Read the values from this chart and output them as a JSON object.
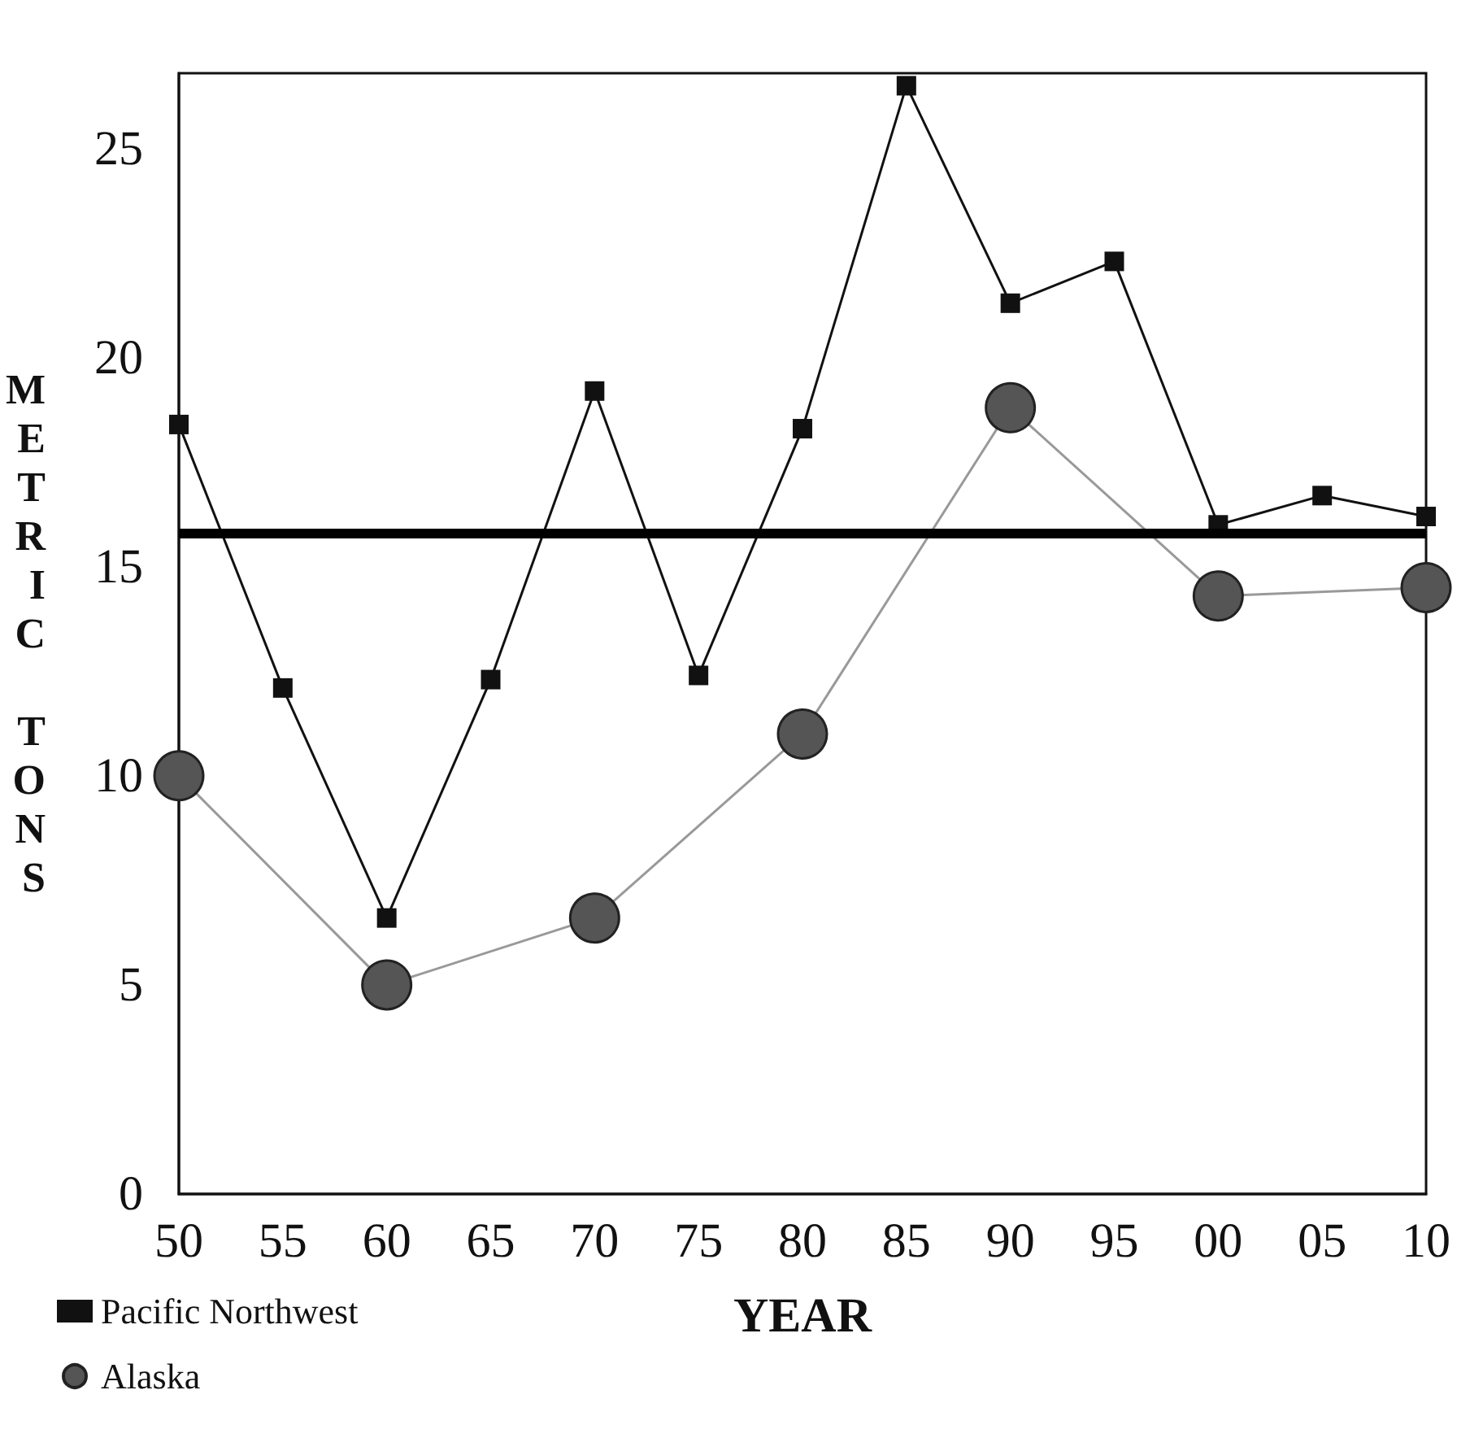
{
  "chart_data": {
    "type": "line",
    "xlabel": "YEAR",
    "ylabel": "METRIC TONS",
    "categories": [
      "50",
      "55",
      "60",
      "65",
      "70",
      "75",
      "80",
      "85",
      "90",
      "95",
      "00",
      "05",
      "10"
    ],
    "series": [
      {
        "name": "Pacific Northwest",
        "color": "#111111",
        "marker": "square",
        "values": [
          18.4,
          12.1,
          6.6,
          12.3,
          19.2,
          12.4,
          18.3,
          26.5,
          21.3,
          22.3,
          16.0,
          16.7,
          16.2
        ]
      },
      {
        "name": "Alaska",
        "color": "#555555",
        "marker": "circle",
        "values": [
          10.0,
          null,
          5.0,
          null,
          6.6,
          null,
          11.0,
          null,
          18.8,
          null,
          14.3,
          null,
          14.5
        ]
      }
    ],
    "ylim": [
      0,
      26.8
    ],
    "yticks": [
      0,
      5,
      10,
      15,
      20,
      25
    ],
    "ref_lines": [
      {
        "axis": "y",
        "value": 15.8,
        "color": "#000000"
      }
    ],
    "grid": false,
    "legend": "bottom left"
  }
}
